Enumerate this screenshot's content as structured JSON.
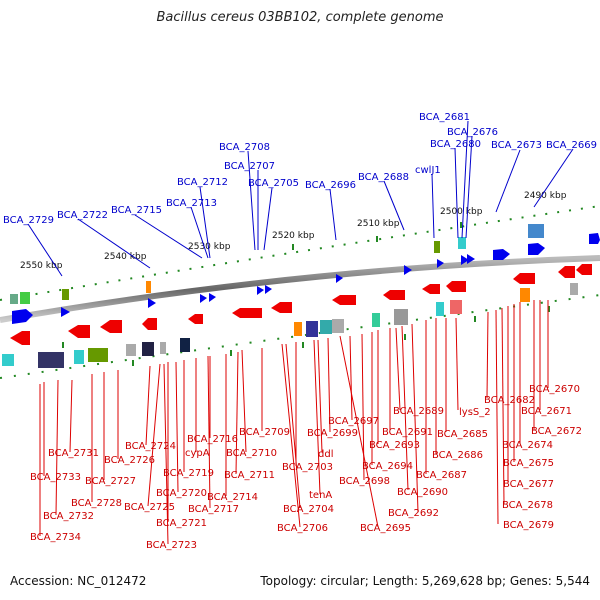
{
  "title": "Bacillus cereus 03BB102, complete genome",
  "footer": {
    "accession": "Accession: NC_012472",
    "summary": "Topology: circular; Length: 5,269,628 bp; Genes: 5,544"
  },
  "ticks": [
    "2490 kbp",
    "2500 kbp",
    "2510 kbp",
    "2520 kbp",
    "2530 kbp",
    "2540 kbp",
    "2550 kbp"
  ],
  "top_labels": [
    "BCA_2681",
    "BCA_2676",
    "BCA_2680",
    "BCA_2673",
    "BCA_2669",
    "BCA_2708",
    "BCA_2707",
    "cwlJ1",
    "BCA_2712",
    "BCA_2705",
    "BCA_2696",
    "BCA_2688",
    "BCA_2713",
    "BCA_2715",
    "BCA_2722",
    "BCA_2729"
  ],
  "bottom_labels": [
    "BCA_2670",
    "BCA_2682",
    "BCA_2671",
    "lysS_2",
    "BCA_2689",
    "BCA_2672",
    "BCA_2697",
    "BCA_2685",
    "BCA_2691",
    "BCA_2674",
    "BCA_2709",
    "BCA_2699",
    "BCA_2716",
    "BCA_2724",
    "BCA_2693",
    "ddl",
    "BCA_2686",
    "BCA_2675",
    "BCA_2731",
    "BCA_2710",
    "cypA",
    "BCA_2726",
    "BCA_2694",
    "BCA_2703",
    "BCA_2711",
    "BCA_2719",
    "BCA_2687",
    "BCA_2677",
    "BCA_2733",
    "BCA_2698",
    "BCA_2690",
    "BCA_2727",
    "BCA_2720",
    "BCA_2714",
    "tenA",
    "BCA_2728",
    "BCA_2725",
    "BCA_2717",
    "BCA_2704",
    "BCA_2678",
    "BCA_2692",
    "BCA_2732",
    "BCA_2721",
    "BCA_2679",
    "BCA_2706",
    "BCA_2695",
    "BCA_2734",
    "BCA_2723"
  ],
  "colors": {
    "forward": "#0000ee",
    "reverse": "#ee0000",
    "backbone": "#777777",
    "tick": "#228822"
  }
}
